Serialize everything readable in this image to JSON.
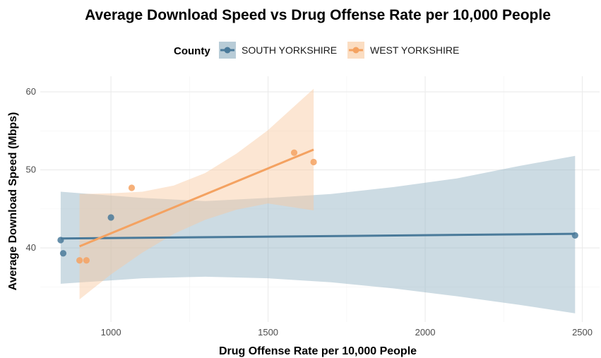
{
  "chart_data": {
    "type": "scatter",
    "title": "Average Download Speed vs Drug Offense Rate per 10,000 People",
    "xlabel": "Drug Offense Rate per 10,000 People",
    "ylabel": "Average Download Speed (Mbps)",
    "xlim": [
      775,
      2555
    ],
    "ylim": [
      30.5,
      62
    ],
    "x_ticks": [
      1000,
      1500,
      2000,
      2500
    ],
    "y_ticks": [
      40,
      50,
      60
    ],
    "grid": true,
    "legend": {
      "title": "County",
      "position": "top"
    },
    "series": [
      {
        "name": "SOUTH YORKSHIRE",
        "color": "#4A7A9A",
        "points": [
          {
            "x": 840,
            "y": 41.0
          },
          {
            "x": 848,
            "y": 39.3
          },
          {
            "x": 1000,
            "y": 43.9
          },
          {
            "x": 2477,
            "y": 41.6
          }
        ],
        "fit": {
          "x": [
            840,
            2477
          ],
          "y": [
            41.2,
            41.8
          ]
        },
        "ci": {
          "x": [
            840,
            1100,
            1300,
            1500,
            1700,
            1900,
            2100,
            2300,
            2477
          ],
          "lower": [
            35.4,
            36.1,
            36.3,
            36.1,
            35.6,
            34.8,
            33.8,
            32.7,
            31.6
          ],
          "upper": [
            47.2,
            46.4,
            46.0,
            46.4,
            46.9,
            47.8,
            48.9,
            50.5,
            51.8
          ]
        }
      },
      {
        "name": "WEST YORKSHIRE",
        "color": "#F4A261",
        "points": [
          {
            "x": 900,
            "y": 38.4
          },
          {
            "x": 922,
            "y": 38.4
          },
          {
            "x": 1066,
            "y": 47.7
          },
          {
            "x": 1583,
            "y": 52.2
          },
          {
            "x": 1645,
            "y": 51.0
          }
        ],
        "fit": {
          "x": [
            900,
            1645
          ],
          "y": [
            40.2,
            52.6
          ]
        },
        "ci": {
          "x": [
            900,
            1000,
            1100,
            1200,
            1300,
            1400,
            1500,
            1645
          ],
          "lower": [
            33.4,
            36.6,
            39.4,
            41.8,
            43.6,
            44.9,
            45.7,
            44.8
          ],
          "upper": [
            46.9,
            47.0,
            47.2,
            48.0,
            49.6,
            52.1,
            55.1,
            60.4
          ]
        }
      }
    ]
  }
}
